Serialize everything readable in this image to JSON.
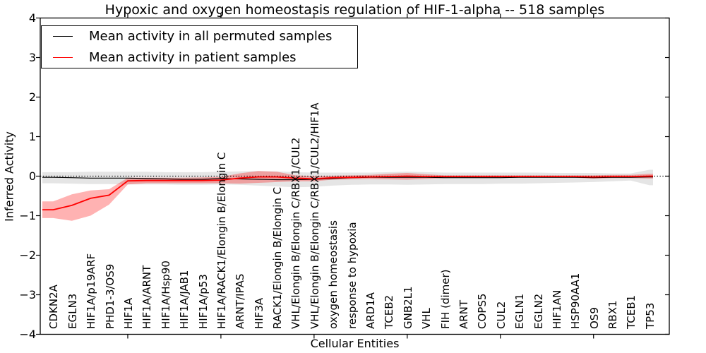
{
  "chart_data": {
    "type": "line",
    "title": "Hypoxic and oxygen homeostasis regulation of HIF-1-alpha -- 518 samples",
    "xlabel": "Cellular Entities",
    "ylabel": "Inferred Activity",
    "ylim": [
      -4,
      4
    ],
    "yticks": [
      -4,
      -3,
      -2,
      -1,
      0,
      1,
      2,
      3,
      4
    ],
    "ytick_labels": [
      "−4",
      "−3",
      "−2",
      "−1",
      "0",
      "1",
      "2",
      "3",
      "4"
    ],
    "grid": false,
    "reference_line_y": 0,
    "legend_position": "upper left",
    "categories": [
      "CDKN2A",
      "EGLN3",
      "HIF1A/p19ARF",
      "PHD1-3/OS9",
      "HIF1A",
      "HIF1A/ARNT",
      "HIF1A/Hsp90",
      "HIF1A/JAB1",
      "HIF1A/p53",
      "HIF1A/RACK1/Elongin B/Elongin C",
      "ARNT/IPAS",
      "HIF3A",
      "RACK1/Elongin B/Elongin C",
      "VHL/Elongin B/Elongin C/RBX1/CUL2",
      "VHL/Elongin B/Elongin C/RBX1/CUL2/HIF1A",
      "oxygen homeostasis",
      "response to hypoxia",
      "ARD1A",
      "TCEB2",
      "GNB2L1",
      "VHL",
      "FIH (dimer)",
      "ARNT",
      "COPS5",
      "CUL2",
      "EGLN1",
      "EGLN2",
      "HIF1AN",
      "HSP90AA1",
      "OS9",
      "RBX1",
      "TCEB1",
      "TP53"
    ],
    "xtick_major_indices": [
      4,
      9,
      14,
      19,
      24,
      29
    ],
    "series": [
      {
        "name": "Mean activity in all permuted samples",
        "color": "#000000",
        "line_width": 1.2,
        "band_color": "rgba(0,0,0,0.10)",
        "values": [
          -0.03,
          -0.04,
          -0.05,
          -0.05,
          -0.05,
          -0.06,
          -0.07,
          -0.08,
          -0.08,
          -0.06,
          -0.07,
          -0.08,
          -0.09,
          -0.09,
          -0.08,
          -0.06,
          -0.04,
          -0.03,
          -0.03,
          -0.03,
          -0.03,
          -0.04,
          -0.04,
          -0.04,
          -0.04,
          -0.03,
          -0.03,
          -0.03,
          -0.03,
          -0.04,
          -0.03,
          -0.03,
          -0.02
        ],
        "band_upper": [
          0.1,
          0.1,
          0.11,
          0.11,
          0.11,
          0.11,
          0.1,
          0.1,
          0.1,
          0.11,
          0.12,
          0.13,
          0.12,
          0.1,
          0.09,
          0.09,
          0.09,
          0.09,
          0.1,
          0.11,
          0.1,
          0.09,
          0.09,
          0.09,
          0.09,
          0.09,
          0.09,
          0.08,
          0.08,
          0.08,
          0.07,
          0.07,
          0.16
        ],
        "band_lower": [
          -0.18,
          -0.19,
          -0.2,
          -0.2,
          -0.21,
          -0.21,
          -0.21,
          -0.22,
          -0.22,
          -0.21,
          -0.22,
          -0.24,
          -0.26,
          -0.28,
          -0.27,
          -0.24,
          -0.22,
          -0.21,
          -0.21,
          -0.22,
          -0.21,
          -0.2,
          -0.2,
          -0.2,
          -0.19,
          -0.19,
          -0.18,
          -0.17,
          -0.16,
          -0.15,
          -0.13,
          -0.11,
          -0.23
        ]
      },
      {
        "name": "Mean activity in patient samples",
        "color": "#ff0000",
        "line_width": 1.8,
        "band_color": "rgba(255,0,0,0.30)",
        "values": [
          -0.85,
          -0.74,
          -0.56,
          -0.48,
          -0.12,
          -0.11,
          -0.11,
          -0.11,
          -0.11,
          -0.1,
          -0.05,
          -0.02,
          -0.02,
          -0.05,
          -0.07,
          -0.04,
          -0.03,
          -0.02,
          -0.01,
          0.0,
          -0.01,
          -0.01,
          -0.01,
          -0.01,
          -0.01,
          -0.01,
          -0.01,
          -0.01,
          -0.01,
          -0.02,
          -0.01,
          -0.01,
          0.0
        ],
        "band_upper": [
          -0.64,
          -0.46,
          -0.36,
          -0.33,
          -0.04,
          -0.04,
          -0.04,
          -0.04,
          -0.03,
          -0.02,
          0.07,
          0.13,
          0.11,
          0.02,
          0.0,
          0.01,
          0.02,
          0.03,
          0.06,
          0.08,
          0.05,
          0.02,
          0.02,
          0.02,
          0.02,
          0.02,
          0.02,
          0.02,
          0.02,
          0.02,
          0.03,
          0.03,
          0.06
        ],
        "band_lower": [
          -1.06,
          -1.13,
          -1.0,
          -0.72,
          -0.21,
          -0.18,
          -0.18,
          -0.18,
          -0.18,
          -0.18,
          -0.19,
          -0.17,
          -0.15,
          -0.13,
          -0.13,
          -0.09,
          -0.08,
          -0.07,
          -0.08,
          -0.09,
          -0.07,
          -0.05,
          -0.04,
          -0.04,
          -0.04,
          -0.04,
          -0.04,
          -0.04,
          -0.04,
          -0.06,
          -0.05,
          -0.05,
          -0.06
        ]
      }
    ]
  },
  "legend": {
    "entries": [
      {
        "label": "Mean activity in all permuted samples",
        "color": "#000000"
      },
      {
        "label": "Mean activity in patient samples",
        "color": "#ff0000"
      }
    ]
  }
}
